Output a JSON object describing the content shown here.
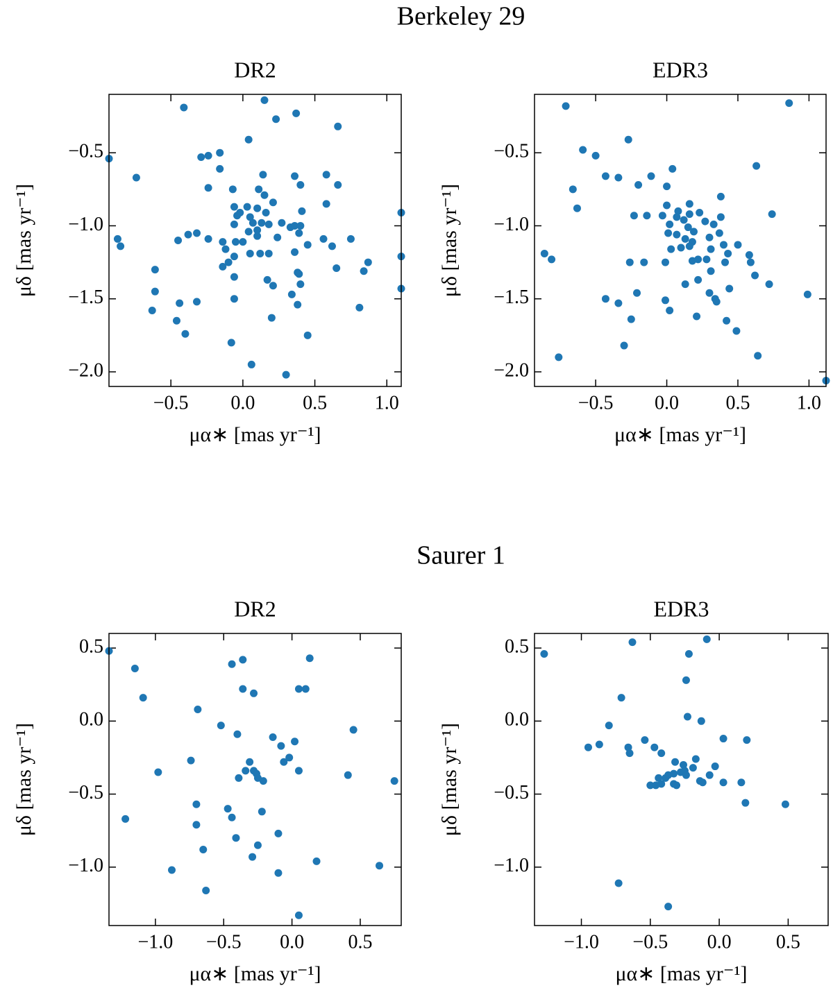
{
  "figure_titles": [
    "Berkeley 29",
    "Saurer 1"
  ],
  "chart_data": [
    {
      "type": "scatter",
      "title": "DR2",
      "xlabel": "μα∗ [mas yr⁻¹]",
      "ylabel": "μδ [mas yr⁻¹]",
      "color": "#1f77b4",
      "xlim": [
        -0.93,
        1.1
      ],
      "ylim": [
        -2.1,
        -0.1
      ],
      "xticks": [
        {
          "value": -0.5,
          "label": "−0.5"
        },
        {
          "value": 0,
          "label": "0.0"
        },
        {
          "value": 0.5,
          "label": "0.5"
        },
        {
          "value": 1,
          "label": "1.0"
        }
      ],
      "yticks": [
        {
          "value": -0.5,
          "label": "−0.5"
        },
        {
          "value": -1,
          "label": "−1.0"
        },
        {
          "value": -1.5,
          "label": "−1.5"
        },
        {
          "value": -2,
          "label": "−2.0"
        }
      ],
      "x": [
        -0.93,
        -0.41,
        0.15,
        0.37,
        0.23,
        0.04,
        0.66,
        -0.87,
        -0.85,
        -0.74,
        -0.29,
        -0.24,
        -0.16,
        -0.16,
        -0.24,
        0.14,
        -0.07,
        0.36,
        0.58,
        0.4,
        0.66,
        -0.06,
        0.03,
        0.11,
        0.15,
        0.21,
        0.1,
        -0.04,
        -0.02,
        0.05,
        0.16,
        0.07,
        0.13,
        0.1,
        0.18,
        0.27,
        0.33,
        0.36,
        0.4,
        0.41,
        0.58,
        -0.06,
        -0.24,
        -0.38,
        -0.32,
        -0.45,
        -0.14,
        -0.12,
        -0.05,
        0.0,
        0.04,
        0.1,
        0.05,
        0.12,
        0.24,
        0.39,
        0.56,
        0.62,
        0.75,
        -0.14,
        -0.1,
        -0.06,
        0.18,
        0.36,
        0.45,
        0.65,
        0.84,
        0.87,
        1.1,
        1.1,
        1.1,
        -0.61,
        -0.61,
        -0.44,
        -0.63,
        -0.46,
        -0.4,
        -0.32,
        -0.06,
        -0.06,
        0.17,
        0.21,
        0.34,
        0.39,
        0.4,
        0.38,
        0.38,
        0.81,
        0.45,
        0.2,
        -0.08,
        0.06,
        0.3
      ],
      "y": [
        -0.54,
        -0.19,
        -0.14,
        -0.23,
        -0.27,
        -0.41,
        -0.32,
        -1.09,
        -1.14,
        -0.67,
        -0.53,
        -0.52,
        -0.5,
        -0.61,
        -0.74,
        -0.65,
        -0.75,
        -0.66,
        -0.65,
        -0.72,
        -0.72,
        -0.87,
        -0.87,
        -0.75,
        -0.79,
        -0.84,
        -0.88,
        -0.93,
        -0.91,
        -0.94,
        -0.91,
        -0.98,
        -0.98,
        -1.03,
        -0.99,
        -0.98,
        -1.01,
        -1.0,
        -1.0,
        -0.9,
        -0.85,
        -0.99,
        -1.09,
        -1.06,
        -1.05,
        -1.1,
        -1.11,
        -1.16,
        -1.11,
        -1.11,
        -1.04,
        -1.07,
        -1.19,
        -1.19,
        -1.08,
        -1.05,
        -1.09,
        -1.14,
        -1.09,
        -1.28,
        -1.25,
        -1.21,
        -1.19,
        -1.18,
        -1.13,
        -1.29,
        -1.31,
        -1.25,
        -0.91,
        -1.21,
        -1.43,
        -1.3,
        -1.45,
        -1.53,
        -1.58,
        -1.65,
        -1.74,
        -1.52,
        -1.35,
        -1.5,
        -1.37,
        -1.41,
        -1.47,
        -1.33,
        -1.4,
        -1.54,
        -1.32,
        -1.56,
        -1.75,
        -1.63,
        -1.8,
        -1.95,
        -2.02
      ]
    },
    {
      "type": "scatter",
      "title": "EDR3",
      "xlabel": "μα∗ [mas yr⁻¹]",
      "ylabel": "μδ [mas yr⁻¹]",
      "color": "#1f77b4",
      "xlim": [
        -0.93,
        1.12
      ],
      "ylim": [
        -2.1,
        -0.1
      ],
      "xticks": [
        {
          "value": -0.5,
          "label": "−0.5"
        },
        {
          "value": 0,
          "label": "0.0"
        },
        {
          "value": 0.5,
          "label": "0.5"
        },
        {
          "value": 1,
          "label": "1.0"
        }
      ],
      "yticks": [
        {
          "value": -0.5,
          "label": "−0.5"
        },
        {
          "value": -1,
          "label": "−1.0"
        },
        {
          "value": -1.5,
          "label": "−1.5"
        },
        {
          "value": -2,
          "label": "−2.0"
        }
      ],
      "x": [
        -0.71,
        0.86,
        -0.27,
        -0.59,
        -0.5,
        -0.43,
        -0.34,
        -0.2,
        -0.11,
        0.04,
        0.0,
        0.63,
        -0.66,
        -0.63,
        -0.23,
        -0.14,
        -0.03,
        0.0,
        0.08,
        0.07,
        0.02,
        0.12,
        0.15,
        0.16,
        0.16,
        0.23,
        0.27,
        0.33,
        0.38,
        0.38,
        0.74,
        0.19,
        0.01,
        0.07,
        0.13,
        0.18,
        0.37,
        0.3,
        0.1,
        0.16,
        0.03,
        0.31,
        0.4,
        0.5,
        0.43,
        0.58,
        -0.86,
        -0.81,
        -0.26,
        -0.16,
        -0.01,
        0.18,
        0.22,
        0.28,
        0.41,
        0.59,
        0.31,
        0.62,
        0.72,
        0.13,
        0.22,
        0.3,
        0.44,
        0.34,
        0.35,
        -0.21,
        -0.01,
        -0.43,
        -0.34,
        0.99,
        0.02,
        -0.25,
        0.21,
        0.42,
        0.49,
        -0.3,
        -0.76,
        0.64,
        1.12
      ],
      "y": [
        -0.18,
        -0.16,
        -0.41,
        -0.48,
        -0.52,
        -0.66,
        -0.67,
        -0.72,
        -0.66,
        -0.61,
        -0.73,
        -0.59,
        -0.75,
        -0.88,
        -0.93,
        -0.93,
        -0.93,
        -0.86,
        -0.9,
        -0.94,
        -0.99,
        -0.96,
        -1.01,
        -0.92,
        -0.85,
        -0.91,
        -0.97,
        -0.99,
        -0.8,
        -0.94,
        -0.92,
        -1.04,
        -1.05,
        -1.06,
        -1.09,
        -1.11,
        -1.05,
        -1.08,
        -1.15,
        -1.14,
        -1.16,
        -1.16,
        -1.13,
        -1.13,
        -1.19,
        -1.2,
        -1.19,
        -1.23,
        -1.25,
        -1.25,
        -1.25,
        -1.24,
        -1.23,
        -1.23,
        -1.25,
        -1.25,
        -1.31,
        -1.34,
        -1.4,
        -1.4,
        -1.37,
        -1.46,
        -1.43,
        -1.5,
        -1.52,
        -1.46,
        -1.51,
        -1.5,
        -1.53,
        -1.47,
        -1.58,
        -1.64,
        -1.62,
        -1.65,
        -1.72,
        -1.82,
        -1.9,
        -1.89,
        -2.06
      ]
    },
    {
      "type": "scatter",
      "title": "DR2",
      "xlabel": "μα∗ [mas yr⁻¹]",
      "ylabel": "μδ [mas yr⁻¹]",
      "color": "#1f77b4",
      "xlim": [
        -1.34,
        0.8
      ],
      "ylim": [
        -1.4,
        0.6
      ],
      "xticks": [
        {
          "value": -1,
          "label": "−1.0"
        },
        {
          "value": -0.5,
          "label": "−0.5"
        },
        {
          "value": 0,
          "label": "0.0"
        },
        {
          "value": 0.5,
          "label": "0.5"
        }
      ],
      "yticks": [
        {
          "value": 0.5,
          "label": "0.5"
        },
        {
          "value": 0,
          "label": "0.0"
        },
        {
          "value": -0.5,
          "label": "−0.5"
        },
        {
          "value": -1,
          "label": "−1.0"
        }
      ],
      "x": [
        -1.34,
        -1.15,
        -1.09,
        -0.69,
        -0.44,
        -0.36,
        -0.36,
        -0.28,
        0.13,
        0.05,
        0.1,
        -0.52,
        -0.4,
        -0.14,
        -0.08,
        0.02,
        0.45,
        -0.02,
        -0.06,
        -0.31,
        -0.34,
        -0.28,
        -0.26,
        -0.39,
        -0.25,
        -0.21,
        0.05,
        0.41,
        0.75,
        -0.98,
        -0.74,
        -0.7,
        -0.7,
        -1.22,
        -0.47,
        -0.44,
        -0.22,
        -0.41,
        -0.1,
        -0.25,
        -0.65,
        -0.29,
        0.18,
        0.64,
        -0.88,
        -0.1,
        -0.63,
        0.05
      ],
      "y": [
        0.48,
        0.36,
        0.16,
        0.08,
        0.39,
        0.42,
        0.22,
        0.19,
        0.43,
        0.22,
        0.22,
        -0.03,
        -0.09,
        -0.11,
        -0.17,
        -0.14,
        -0.06,
        -0.25,
        -0.28,
        -0.28,
        -0.34,
        -0.34,
        -0.36,
        -0.39,
        -0.39,
        -0.41,
        -0.34,
        -0.37,
        -0.41,
        -0.35,
        -0.27,
        -0.57,
        -0.71,
        -0.67,
        -0.6,
        -0.66,
        -0.62,
        -0.8,
        -0.77,
        -0.85,
        -0.88,
        -0.93,
        -0.96,
        -0.99,
        -1.02,
        -1.04,
        -1.16,
        -1.33
      ]
    },
    {
      "type": "scatter",
      "title": "EDR3",
      "xlabel": "μα∗ [mas yr⁻¹]",
      "ylabel": "μδ [mas yr⁻¹]",
      "color": "#1f77b4",
      "xlim": [
        -1.34,
        0.79
      ],
      "ylim": [
        -1.4,
        0.6
      ],
      "xticks": [
        {
          "value": -1,
          "label": "−1.0"
        },
        {
          "value": -0.5,
          "label": "−0.5"
        },
        {
          "value": 0,
          "label": "0.0"
        },
        {
          "value": 0.5,
          "label": "0.5"
        }
      ],
      "yticks": [
        {
          "value": 0.5,
          "label": "0.5"
        },
        {
          "value": 0,
          "label": "0.0"
        },
        {
          "value": -0.5,
          "label": "−0.5"
        },
        {
          "value": -1,
          "label": "−1.0"
        }
      ],
      "x": [
        -1.27,
        -0.63,
        -0.09,
        -0.22,
        -0.24,
        -0.71,
        -0.23,
        -0.13,
        -0.8,
        -0.95,
        -0.87,
        -0.66,
        -0.65,
        -0.54,
        -0.47,
        -0.42,
        0.03,
        0.2,
        -0.17,
        -0.03,
        -0.32,
        -0.26,
        -0.25,
        -0.28,
        -0.33,
        -0.19,
        -0.07,
        -0.37,
        -0.24,
        -0.44,
        -0.39,
        -0.42,
        -0.5,
        -0.46,
        -0.33,
        -0.31,
        -0.14,
        0.03,
        0.16,
        -0.12,
        0.19,
        0.48,
        -0.73,
        -0.37
      ],
      "y": [
        0.46,
        0.54,
        0.56,
        0.46,
        0.28,
        0.16,
        0.03,
        0.0,
        -0.03,
        -0.18,
        -0.16,
        -0.18,
        -0.22,
        -0.13,
        -0.18,
        -0.22,
        -0.12,
        -0.13,
        -0.26,
        -0.31,
        -0.28,
        -0.3,
        -0.34,
        -0.35,
        -0.36,
        -0.32,
        -0.37,
        -0.37,
        -0.37,
        -0.39,
        -0.39,
        -0.43,
        -0.44,
        -0.44,
        -0.43,
        -0.44,
        -0.41,
        -0.42,
        -0.42,
        -0.42,
        -0.56,
        -0.57,
        -1.11,
        -1.27
      ]
    }
  ]
}
